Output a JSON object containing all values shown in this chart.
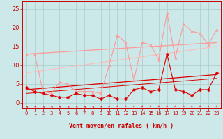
{
  "bg_color": "#cce8e8",
  "grid_color": "#aacccc",
  "xlabel": "Vent moyen/en rafales ( km/h )",
  "xlim": [
    -0.5,
    23.5
  ],
  "ylim": [
    -1.5,
    27
  ],
  "yticks": [
    0,
    5,
    10,
    15,
    20,
    25
  ],
  "xticks": [
    0,
    1,
    2,
    3,
    4,
    5,
    6,
    7,
    8,
    9,
    10,
    11,
    12,
    13,
    14,
    15,
    16,
    17,
    18,
    19,
    20,
    21,
    22,
    23
  ],
  "line_dark_data": {
    "x": [
      0,
      1,
      2,
      3,
      4,
      5,
      6,
      7,
      8,
      9,
      10,
      11,
      12,
      13,
      14,
      15,
      16,
      17,
      18,
      19,
      20,
      21,
      22,
      23
    ],
    "y": [
      4,
      3,
      2.5,
      2,
      1.5,
      1.5,
      2.5,
      2,
      2,
      1,
      2,
      1,
      1,
      3.5,
      4,
      3,
      3.5,
      13,
      3.5,
      3,
      2,
      3.5,
      3.5,
      8
    ],
    "color": "#dd0000",
    "marker": "D",
    "ms": 2.5,
    "lw": 0.8
  },
  "line_light_data": {
    "x": [
      0,
      1,
      2,
      3,
      4,
      5,
      6,
      7,
      8,
      9,
      10,
      11,
      12,
      13,
      14,
      15,
      16,
      17,
      18,
      19,
      20,
      21,
      22,
      23
    ],
    "y": [
      13,
      13,
      3,
      2.5,
      5.5,
      5,
      3,
      3,
      3,
      2.5,
      10,
      18,
      16,
      6,
      16,
      15.5,
      11.5,
      24,
      12,
      21,
      19,
      18.5,
      15.5,
      19.5
    ],
    "color": "#ff9999",
    "marker": "^",
    "ms": 2.5,
    "lw": 0.8
  },
  "trend_lines": [
    {
      "x": [
        0,
        23
      ],
      "y": [
        3.5,
        7.5
      ],
      "color": "#dd0000",
      "lw": 0.9
    },
    {
      "x": [
        0,
        23
      ],
      "y": [
        2.5,
        6.5
      ],
      "color": "#dd0000",
      "lw": 0.7
    },
    {
      "x": [
        0,
        23
      ],
      "y": [
        13,
        16
      ],
      "color": "#ff9999",
      "lw": 0.9
    },
    {
      "x": [
        0,
        23
      ],
      "y": [
        8,
        15
      ],
      "color": "#ffbbbb",
      "lw": 0.8
    }
  ],
  "arrow_color": "#dd0000",
  "xlabel_fontsize": 6,
  "tick_fontsize": 5,
  "ytick_fontsize": 6
}
